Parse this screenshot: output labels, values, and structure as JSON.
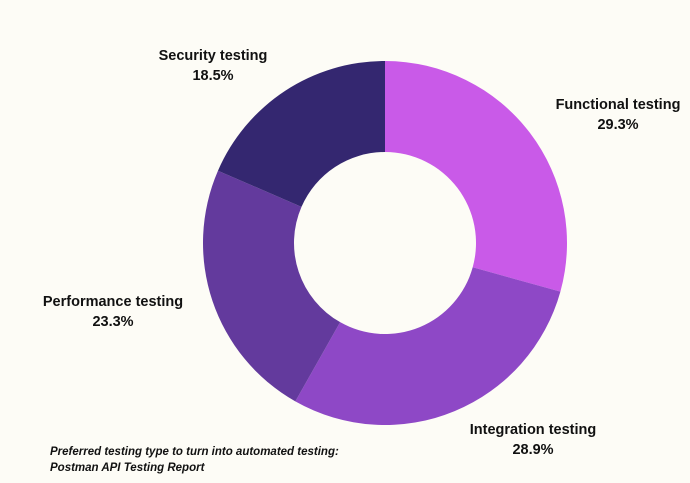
{
  "chart_data": {
    "type": "pie",
    "donut": true,
    "categories": [
      "Functional testing",
      "Integration testing",
      "Performance testing",
      "Security testing"
    ],
    "values": [
      29.3,
      28.9,
      23.3,
      18.5
    ],
    "value_labels": [
      "29.3%",
      "28.9%",
      "23.3%",
      "18.5%"
    ],
    "colors": [
      "#c95ae8",
      "#8e48c6",
      "#633a9d",
      "#342770"
    ],
    "caption": "Preferred testing type to turn into automated testing: Postman API Testing Report"
  }
}
